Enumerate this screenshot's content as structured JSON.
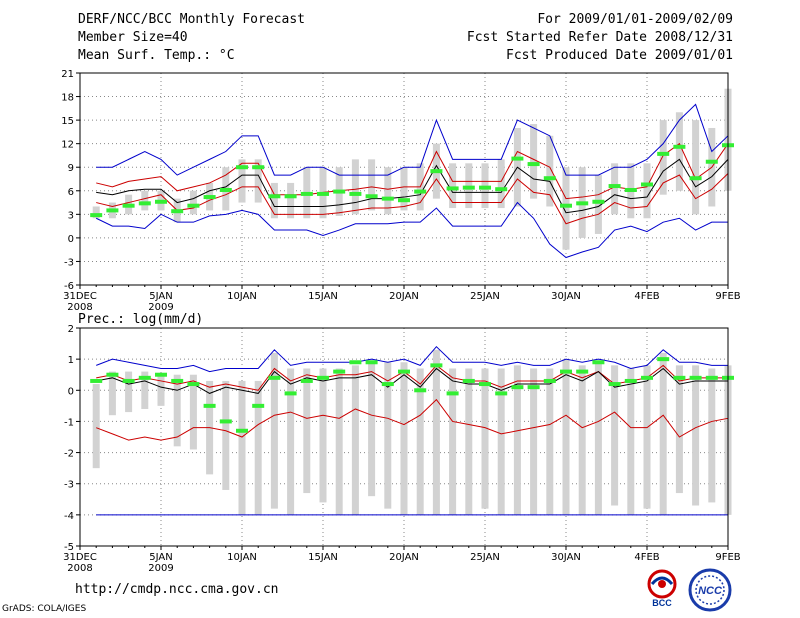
{
  "header": {
    "left1": "DERF/NCC/BCC Monthly Forecast",
    "left2": "Member Size=40",
    "left3": "Mean Surf. Temp.: °C",
    "right1": "For 2009/01/01-2009/02/09",
    "right2": "Fcst Started Refer Date 2008/12/31",
    "right3": "Fcst Produced Date 2009/01/01"
  },
  "footer": {
    "url": "http://cmdp.ncc.cma.gov.cn",
    "grads": "GrADS: COLA/IGES",
    "logo_left": "BCC",
    "logo_right": "NCC"
  },
  "colors": {
    "envelope": "#0000cc",
    "spread": "#cc0000",
    "mean": "#000000",
    "obs": "#33ee33",
    "bar": "#d2d2d2",
    "floor": "#0000cc"
  },
  "chart_data": [
    {
      "type": "box-ensemble",
      "title": "Mean Surf. Temp.: °C",
      "ylim": [
        -6,
        21
      ],
      "yticks": [
        -6,
        -3,
        0,
        3,
        6,
        9,
        12,
        15,
        18,
        21
      ],
      "grid": "dotted",
      "xtick_labels": [
        {
          "day": 0,
          "label": "31DEC",
          "sub": "2008"
        },
        {
          "day": 5,
          "label": "5JAN",
          "sub": "2009"
        },
        {
          "day": 10,
          "label": "10JAN",
          "sub": ""
        },
        {
          "day": 15,
          "label": "15JAN",
          "sub": ""
        },
        {
          "day": 20,
          "label": "20JAN",
          "sub": ""
        },
        {
          "day": 25,
          "label": "25JAN",
          "sub": ""
        },
        {
          "day": 30,
          "label": "30JAN",
          "sub": ""
        },
        {
          "day": 35,
          "label": "4FEB",
          "sub": ""
        },
        {
          "day": 40,
          "label": "9FEB",
          "sub": ""
        }
      ],
      "days": [
        1,
        2,
        3,
        4,
        5,
        6,
        7,
        8,
        9,
        10,
        11,
        12,
        13,
        14,
        15,
        16,
        17,
        18,
        19,
        20,
        21,
        22,
        23,
        24,
        25,
        26,
        27,
        28,
        29,
        30,
        31,
        32,
        33,
        34,
        35,
        36,
        37,
        38,
        39,
        40
      ],
      "max_line": [
        9,
        9,
        10,
        11,
        10,
        8,
        9,
        10,
        11,
        13,
        13,
        8,
        8,
        9,
        9,
        8,
        8,
        8,
        8,
        9,
        9,
        15,
        10,
        10,
        10,
        10,
        15,
        14,
        13,
        8,
        8,
        8,
        9,
        9,
        10,
        12,
        15,
        17,
        11,
        13
      ],
      "upper_line": [
        7,
        6.5,
        7.2,
        7.5,
        7.8,
        6,
        6.5,
        7,
        8,
        9.5,
        9.5,
        5.5,
        5.5,
        5.5,
        5.8,
        6,
        6.2,
        6.5,
        6.2,
        6.5,
        6.5,
        11,
        7.2,
        7.2,
        7.2,
        7.2,
        11,
        10,
        9,
        5,
        5.2,
        5.5,
        6.5,
        6.2,
        6.5,
        10.5,
        12,
        7.5,
        9,
        12
      ],
      "mean_line": [
        5.8,
        5.5,
        6,
        6.2,
        6.2,
        4.5,
        5,
        6,
        6.5,
        8,
        8,
        4,
        4,
        4,
        4,
        4.2,
        4.5,
        5,
        5,
        5.2,
        5.5,
        9.2,
        5.8,
        5.8,
        5.8,
        5.8,
        9,
        7.5,
        7.2,
        3.2,
        3.5,
        4,
        5.5,
        5,
        5.2,
        8.5,
        10,
        6.5,
        7.8,
        10
      ],
      "lower_line": [
        4.5,
        4,
        4.5,
        5,
        5.5,
        3.5,
        3.8,
        4.8,
        5.5,
        6.5,
        6.5,
        3,
        3,
        3,
        3,
        3.2,
        3.5,
        3.8,
        3.8,
        4,
        4.5,
        7.5,
        4.5,
        4.5,
        4.5,
        4.5,
        7.5,
        5.8,
        5.5,
        1.8,
        2.5,
        3,
        4.5,
        3.8,
        4,
        7,
        8,
        5,
        6.2,
        8.2
      ],
      "min_line": [
        2.5,
        1.5,
        1.5,
        1.2,
        3,
        2,
        2,
        2.8,
        3,
        3.5,
        3,
        1,
        1,
        1,
        0.3,
        1,
        1.8,
        1.8,
        1.8,
        2,
        2,
        3.8,
        1.5,
        1.5,
        1.5,
        1.5,
        4.5,
        2.5,
        -0.8,
        -2.5,
        -1.8,
        -1.2,
        1,
        1.5,
        0.8,
        2,
        2.5,
        1,
        2,
        2
      ],
      "bar_top": [
        4,
        4.5,
        5.5,
        6,
        6,
        5,
        6,
        7,
        9,
        10,
        10,
        7,
        7,
        9,
        9,
        9,
        10,
        10,
        9,
        9,
        9.5,
        12,
        9.5,
        9.5,
        9.5,
        10,
        14,
        14.5,
        13,
        9,
        9,
        8,
        9.5,
        9.5,
        9.5,
        15,
        16,
        15,
        14,
        19
      ],
      "bar_bottom": [
        2.5,
        2.5,
        3,
        3.5,
        3.5,
        2,
        3,
        3.5,
        3.5,
        4.5,
        4.5,
        2.5,
        2.5,
        2.5,
        2.5,
        2.8,
        3,
        3.5,
        3,
        3.5,
        3.5,
        5,
        3.8,
        3.8,
        3.8,
        3.8,
        4,
        5,
        4,
        -1.5,
        0,
        0.5,
        3,
        2.5,
        2.5,
        5.5,
        6,
        3,
        4,
        6
      ],
      "obs_marks": [
        2.9,
        3.5,
        4.1,
        4.4,
        4.6,
        3.4,
        4.1,
        5.2,
        6.1,
        9.0,
        9.0,
        5.3,
        5.3,
        5.6,
        5.6,
        5.9,
        5.6,
        5.3,
        5.0,
        4.8,
        5.9,
        8.5,
        6.3,
        6.4,
        6.4,
        6.2,
        10.1,
        9.4,
        7.6,
        4.1,
        4.4,
        4.6,
        6.6,
        6.1,
        6.8,
        10.7,
        11.6,
        7.6,
        9.7,
        11.8
      ]
    },
    {
      "type": "box-ensemble",
      "title": "Prec.: log(mm/d)",
      "ylim": [
        -5,
        2
      ],
      "yticks": [
        -5,
        -4,
        -3,
        -2,
        -1,
        0,
        1,
        2
      ],
      "grid": "dotted",
      "xtick_labels": [
        {
          "day": 0,
          "label": "31DEC",
          "sub": "2008"
        },
        {
          "day": 5,
          "label": "5JAN",
          "sub": "2009"
        },
        {
          "day": 10,
          "label": "10JAN",
          "sub": ""
        },
        {
          "day": 15,
          "label": "15JAN",
          "sub": ""
        },
        {
          "day": 20,
          "label": "20JAN",
          "sub": ""
        },
        {
          "day": 25,
          "label": "25JAN",
          "sub": ""
        },
        {
          "day": 30,
          "label": "30JAN",
          "sub": ""
        },
        {
          "day": 35,
          "label": "4FEB",
          "sub": ""
        },
        {
          "day": 40,
          "label": "9FEB",
          "sub": ""
        }
      ],
      "days": [
        1,
        2,
        3,
        4,
        5,
        6,
        7,
        8,
        9,
        10,
        11,
        12,
        13,
        14,
        15,
        16,
        17,
        18,
        19,
        20,
        21,
        22,
        23,
        24,
        25,
        26,
        27,
        28,
        29,
        30,
        31,
        32,
        33,
        34,
        35,
        36,
        37,
        38,
        39,
        40
      ],
      "max_line": [
        0.8,
        1,
        0.9,
        0.8,
        0.7,
        0.7,
        0.8,
        0.6,
        0.7,
        0.7,
        0.7,
        1.3,
        0.8,
        0.9,
        0.9,
        0.9,
        0.9,
        1,
        0.9,
        1,
        0.8,
        1.4,
        0.9,
        0.9,
        0.9,
        0.8,
        0.9,
        0.8,
        0.8,
        1,
        0.9,
        1,
        0.9,
        0.7,
        0.8,
        1.3,
        0.9,
        0.9,
        0.8,
        0.8
      ],
      "upper_line": [
        0.4,
        0.5,
        0.3,
        0.4,
        0.3,
        0.2,
        0.3,
        0.1,
        0.2,
        0.1,
        0,
        0.7,
        0.3,
        0.5,
        0.4,
        0.5,
        0.5,
        0.6,
        0.3,
        0.6,
        0.2,
        0.8,
        0.4,
        0.3,
        0.3,
        0.1,
        0.3,
        0.3,
        0.3,
        0.6,
        0.4,
        0.6,
        0.2,
        0.3,
        0.4,
        0.8,
        0.3,
        0.4,
        0.4,
        0.4
      ],
      "mean_line": [
        0.3,
        0.4,
        0.2,
        0.3,
        0.1,
        0,
        0.2,
        -0.1,
        0.1,
        0,
        -0.1,
        0.6,
        0.2,
        0.4,
        0.3,
        0.4,
        0.4,
        0.5,
        0.1,
        0.5,
        0.1,
        0.7,
        0.3,
        0.2,
        0.2,
        0,
        0.2,
        0.2,
        0.2,
        0.5,
        0.3,
        0.6,
        0.1,
        0.2,
        0.3,
        0.7,
        0.2,
        0.3,
        0.3,
        0.3
      ],
      "lower_line": [
        -1.2,
        -1.4,
        -1.6,
        -1.5,
        -1.6,
        -1.5,
        -1.2,
        -1.2,
        -1.3,
        -1.5,
        -1.1,
        -0.8,
        -0.7,
        -0.9,
        -0.8,
        -0.9,
        -0.6,
        -0.8,
        -0.9,
        -1.1,
        -0.8,
        -0.3,
        -1,
        -1.1,
        -1.2,
        -1.4,
        -1.3,
        -1.2,
        -1.1,
        -0.8,
        -1.2,
        -1,
        -0.7,
        -1.2,
        -1.2,
        -0.8,
        -1.5,
        -1.2,
        -1,
        -0.9
      ],
      "floor_line": -4,
      "bar_top": [
        0.2,
        0.6,
        0.6,
        0.6,
        0.5,
        0.5,
        0.5,
        0.3,
        0.3,
        0.3,
        0.3,
        1.2,
        0.7,
        0.7,
        0.7,
        0.7,
        0.8,
        0.9,
        0.9,
        0.9,
        0.7,
        1.3,
        0.7,
        0.7,
        0.7,
        0.7,
        0.8,
        0.7,
        0.7,
        1,
        0.8,
        0.9,
        0.8,
        0.7,
        0.8,
        1.2,
        0.8,
        0.8,
        0.7,
        0.8
      ],
      "bar_bottom": [
        -2.5,
        -0.8,
        -0.7,
        -0.6,
        -0.5,
        -1.8,
        -1.9,
        -2.7,
        -3.2,
        -4,
        -4,
        -3.8,
        -4,
        -3.3,
        -3.6,
        -4,
        -4,
        -3.4,
        -3.8,
        -4,
        -4,
        -4,
        -4,
        -4,
        -3.8,
        -4,
        -4,
        -4,
        -4,
        -4,
        -4,
        -4,
        -3.7,
        -4,
        -3.8,
        -4,
        -3.3,
        -3.7,
        -3.6,
        -4
      ],
      "obs_marks": [
        0.3,
        0.5,
        0.3,
        0.4,
        0.5,
        0.3,
        0.2,
        -0.5,
        -1,
        -1.3,
        -0.5,
        0.4,
        -0.1,
        0.3,
        0.4,
        0.6,
        0.9,
        0.9,
        0.2,
        0.6,
        0,
        0.8,
        -0.1,
        0.3,
        0.2,
        -0.1,
        0.1,
        0.1,
        0.3,
        0.6,
        0.6,
        0.9,
        0.2,
        0.3,
        0.4,
        1,
        0.4,
        0.4,
        0.4,
        0.4
      ]
    }
  ]
}
